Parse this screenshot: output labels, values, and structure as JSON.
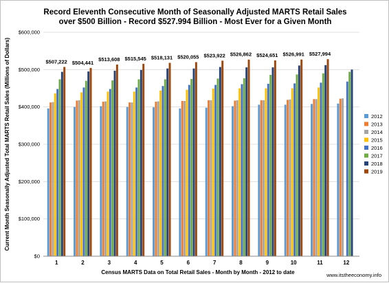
{
  "chart_data": {
    "type": "bar",
    "title": [
      "Record Eleventh Consecutive Month of Seasonally Adjusted MARTS Retail Sales",
      "over $500 Billion - Record $527.994 Billion - Most Ever for a Given Month"
    ],
    "xlabel": "Census MARTS Data on Total Retail Sales - Month by Month - 2012 to date",
    "ylabel": "Current Month Seasonally Adjusted Total MARTS Retail Sales (Millions of Dollars)",
    "ylim": [
      0,
      600000
    ],
    "y_ticks": [
      "$0",
      "$100,000",
      "$200,000",
      "$300,000",
      "$400,000",
      "$500,000",
      "$600,000"
    ],
    "categories": [
      "1",
      "2",
      "3",
      "4",
      "5",
      "6",
      "7",
      "8",
      "9",
      "10",
      "11",
      "12"
    ],
    "grid": true,
    "legend_position": "right",
    "series": [
      {
        "name": "2012",
        "color": "#5b9bd5",
        "values": [
          396000,
          400000,
          402000,
          400000,
          399000,
          396000,
          398000,
          402000,
          406000,
          406000,
          408000,
          409000
        ]
      },
      {
        "name": "2013",
        "color": "#ed7d31",
        "values": [
          412000,
          417000,
          414000,
          412000,
          414000,
          416000,
          418000,
          417000,
          418000,
          419000,
          421000,
          422000
        ]
      },
      {
        "name": "2014",
        "color": "#a5a5a5",
        "values": [
          413000,
          418000,
          415000,
          412000,
          415000,
          416000,
          418000,
          418000,
          418000,
          420000,
          421000,
          423000
        ]
      },
      {
        "name": "2015",
        "color": "#ffc000",
        "values": [
          436000,
          439000,
          441000,
          441000,
          444000,
          446000,
          449000,
          450000,
          450000,
          450000,
          452000,
          0
        ]
      },
      {
        "name": "2016",
        "color": "#4472c4",
        "values": [
          448000,
          452000,
          448000,
          452000,
          456000,
          459000,
          459000,
          461000,
          462000,
          463000,
          465000,
          468000
        ]
      },
      {
        "name": "2017",
        "color": "#70ad47",
        "values": [
          474000,
          470000,
          471000,
          474000,
          474000,
          475000,
          476000,
          477000,
          486000,
          487000,
          490000,
          494000
        ]
      },
      {
        "name": "2018",
        "color": "#264478",
        "values": [
          494000,
          495000,
          497000,
          499000,
          503000,
          503000,
          507000,
          506000,
          506000,
          511000,
          512000,
          500000
        ]
      },
      {
        "name": "2019",
        "color": "#9e480e",
        "values": [
          507222,
          504441,
          513608,
          515545,
          518131,
          520055,
          523922,
          526862,
          524651,
          526991,
          527994,
          null
        ]
      }
    ],
    "data_labels": [
      "$507,222",
      "$504,441",
      "$513,608",
      "$515,545",
      "$518,131",
      "$520,055",
      "$523,922",
      "$526,862",
      "$524,651",
      "$526,991",
      "$527,994"
    ],
    "source": "www.itstheeconomy.info"
  }
}
